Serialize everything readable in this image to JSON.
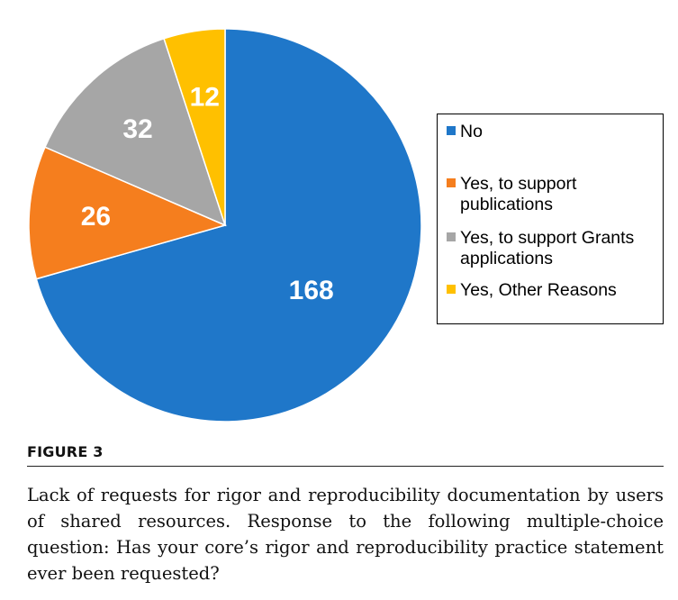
{
  "chart_data": {
    "type": "pie",
    "title": "",
    "start": "12 o'clock",
    "direction": "clockwise",
    "slices": [
      {
        "label": "No",
        "value": 168,
        "color": "#1F77C9"
      },
      {
        "label": "Yes, to support publications",
        "value": 26,
        "color": "#F57E1E"
      },
      {
        "label": "Yes, to support Grants applications",
        "value": 32,
        "color": "#A6A6A6"
      },
      {
        "label": "Yes, Other Reasons",
        "value": 12,
        "color": "#FFC000"
      }
    ],
    "legend_position": "right"
  },
  "legend": {
    "entries": [
      {
        "line1": "No",
        "line2": ""
      },
      {
        "line1": "Yes, to support",
        "line2": "publications"
      },
      {
        "line1": "Yes, to support Grants",
        "line2": "applications"
      },
      {
        "line1": "Yes, Other Reasons",
        "line2": ""
      }
    ]
  },
  "figure": {
    "label": "FIGURE 3",
    "caption": "Lack of requests for rigor and reproducibility documentation by users of shared resources. Response to the following multiple-choice question: Has your core’s rigor and reproducibility practice statement ever been requested?"
  }
}
